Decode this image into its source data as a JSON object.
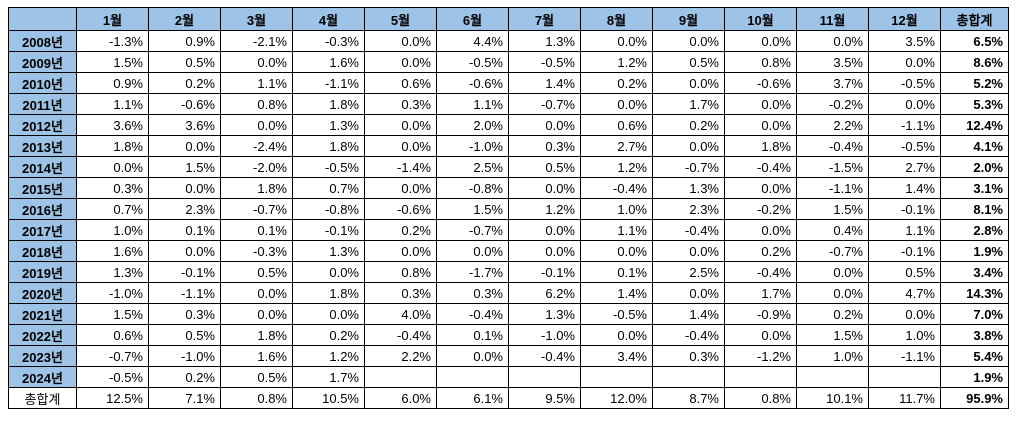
{
  "table": {
    "corner": "",
    "headers": [
      "1월",
      "2월",
      "3월",
      "4월",
      "5월",
      "6월",
      "7월",
      "8월",
      "9월",
      "10월",
      "11월",
      "12월",
      "총합계"
    ],
    "rows": [
      {
        "year": "2008년",
        "cells": [
          "-1.3%",
          "0.9%",
          "-2.1%",
          "-0.3%",
          "0.0%",
          "4.4%",
          "1.3%",
          "0.0%",
          "0.0%",
          "0.0%",
          "0.0%",
          "3.5%",
          "6.5%"
        ]
      },
      {
        "year": "2009년",
        "cells": [
          "1.5%",
          "0.5%",
          "0.0%",
          "1.6%",
          "0.0%",
          "-0.5%",
          "-0.5%",
          "1.2%",
          "0.5%",
          "0.8%",
          "3.5%",
          "0.0%",
          "8.6%"
        ]
      },
      {
        "year": "2010년",
        "cells": [
          "0.9%",
          "0.2%",
          "1.1%",
          "-1.1%",
          "0.6%",
          "-0.6%",
          "1.4%",
          "0.2%",
          "0.0%",
          "-0.6%",
          "3.7%",
          "-0.5%",
          "5.2%"
        ]
      },
      {
        "year": "2011년",
        "cells": [
          "1.1%",
          "-0.6%",
          "0.8%",
          "1.8%",
          "0.3%",
          "1.1%",
          "-0.7%",
          "0.0%",
          "1.7%",
          "0.0%",
          "-0.2%",
          "0.0%",
          "5.3%"
        ]
      },
      {
        "year": "2012년",
        "cells": [
          "3.6%",
          "3.6%",
          "0.0%",
          "1.3%",
          "0.0%",
          "2.0%",
          "0.0%",
          "0.6%",
          "0.2%",
          "0.0%",
          "2.2%",
          "-1.1%",
          "12.4%"
        ]
      },
      {
        "year": "2013년",
        "cells": [
          "1.8%",
          "0.0%",
          "-2.4%",
          "1.8%",
          "0.0%",
          "-1.0%",
          "0.3%",
          "2.7%",
          "0.0%",
          "1.8%",
          "-0.4%",
          "-0.5%",
          "4.1%"
        ]
      },
      {
        "year": "2014년",
        "cells": [
          "0.0%",
          "1.5%",
          "-2.0%",
          "-0.5%",
          "-1.4%",
          "2.5%",
          "0.5%",
          "1.2%",
          "-0.7%",
          "-0.4%",
          "-1.5%",
          "2.7%",
          "2.0%"
        ]
      },
      {
        "year": "2015년",
        "cells": [
          "0.3%",
          "0.0%",
          "1.8%",
          "0.7%",
          "0.0%",
          "-0.8%",
          "0.0%",
          "-0.4%",
          "1.3%",
          "0.0%",
          "-1.1%",
          "1.4%",
          "3.1%"
        ]
      },
      {
        "year": "2016년",
        "cells": [
          "0.7%",
          "2.3%",
          "-0.7%",
          "-0.8%",
          "-0.6%",
          "1.5%",
          "1.2%",
          "1.0%",
          "2.3%",
          "-0.2%",
          "1.5%",
          "-0.1%",
          "8.1%"
        ]
      },
      {
        "year": "2017년",
        "cells": [
          "1.0%",
          "0.1%",
          "0.1%",
          "-0.1%",
          "0.2%",
          "-0.7%",
          "0.0%",
          "1.1%",
          "-0.4%",
          "0.0%",
          "0.4%",
          "1.1%",
          "2.8%"
        ]
      },
      {
        "year": "2018년",
        "cells": [
          "1.6%",
          "0.0%",
          "-0.3%",
          "1.3%",
          "0.0%",
          "0.0%",
          "0.0%",
          "0.0%",
          "0.0%",
          "0.2%",
          "-0.7%",
          "-0.1%",
          "1.9%"
        ]
      },
      {
        "year": "2019년",
        "cells": [
          "1.3%",
          "-0.1%",
          "0.5%",
          "0.0%",
          "0.8%",
          "-1.7%",
          "-0.1%",
          "0.1%",
          "2.5%",
          "-0.4%",
          "0.0%",
          "0.5%",
          "3.4%"
        ]
      },
      {
        "year": "2020년",
        "cells": [
          "-1.0%",
          "-1.1%",
          "0.0%",
          "1.8%",
          "0.3%",
          "0.3%",
          "6.2%",
          "1.4%",
          "0.0%",
          "1.7%",
          "0.0%",
          "4.7%",
          "14.3%"
        ]
      },
      {
        "year": "2021년",
        "cells": [
          "1.5%",
          "0.3%",
          "0.0%",
          "0.0%",
          "4.0%",
          "-0.4%",
          "1.3%",
          "-0.5%",
          "1.4%",
          "-0.9%",
          "0.2%",
          "0.0%",
          "7.0%"
        ]
      },
      {
        "year": "2022년",
        "cells": [
          "0.6%",
          "0.5%",
          "1.8%",
          "0.2%",
          "-0.4%",
          "0.1%",
          "-1.0%",
          "0.0%",
          "-0.4%",
          "0.0%",
          "1.5%",
          "1.0%",
          "3.8%"
        ]
      },
      {
        "year": "2023년",
        "cells": [
          "-0.7%",
          "-1.0%",
          "1.6%",
          "1.2%",
          "2.2%",
          "0.0%",
          "-0.4%",
          "3.4%",
          "0.3%",
          "-1.2%",
          "1.0%",
          "-1.1%",
          "5.4%"
        ]
      },
      {
        "year": "2024년",
        "cells": [
          "-0.5%",
          "0.2%",
          "0.5%",
          "1.7%",
          "",
          "",
          "",
          "",
          "",
          "",
          "",
          "",
          "1.9%"
        ]
      }
    ],
    "summary": {
      "label": "총합계",
      "cells": [
        "12.5%",
        "7.1%",
        "0.8%",
        "10.5%",
        "6.0%",
        "6.1%",
        "9.5%",
        "12.0%",
        "8.7%",
        "0.8%",
        "10.1%",
        "11.7%",
        "95.9%"
      ]
    }
  }
}
